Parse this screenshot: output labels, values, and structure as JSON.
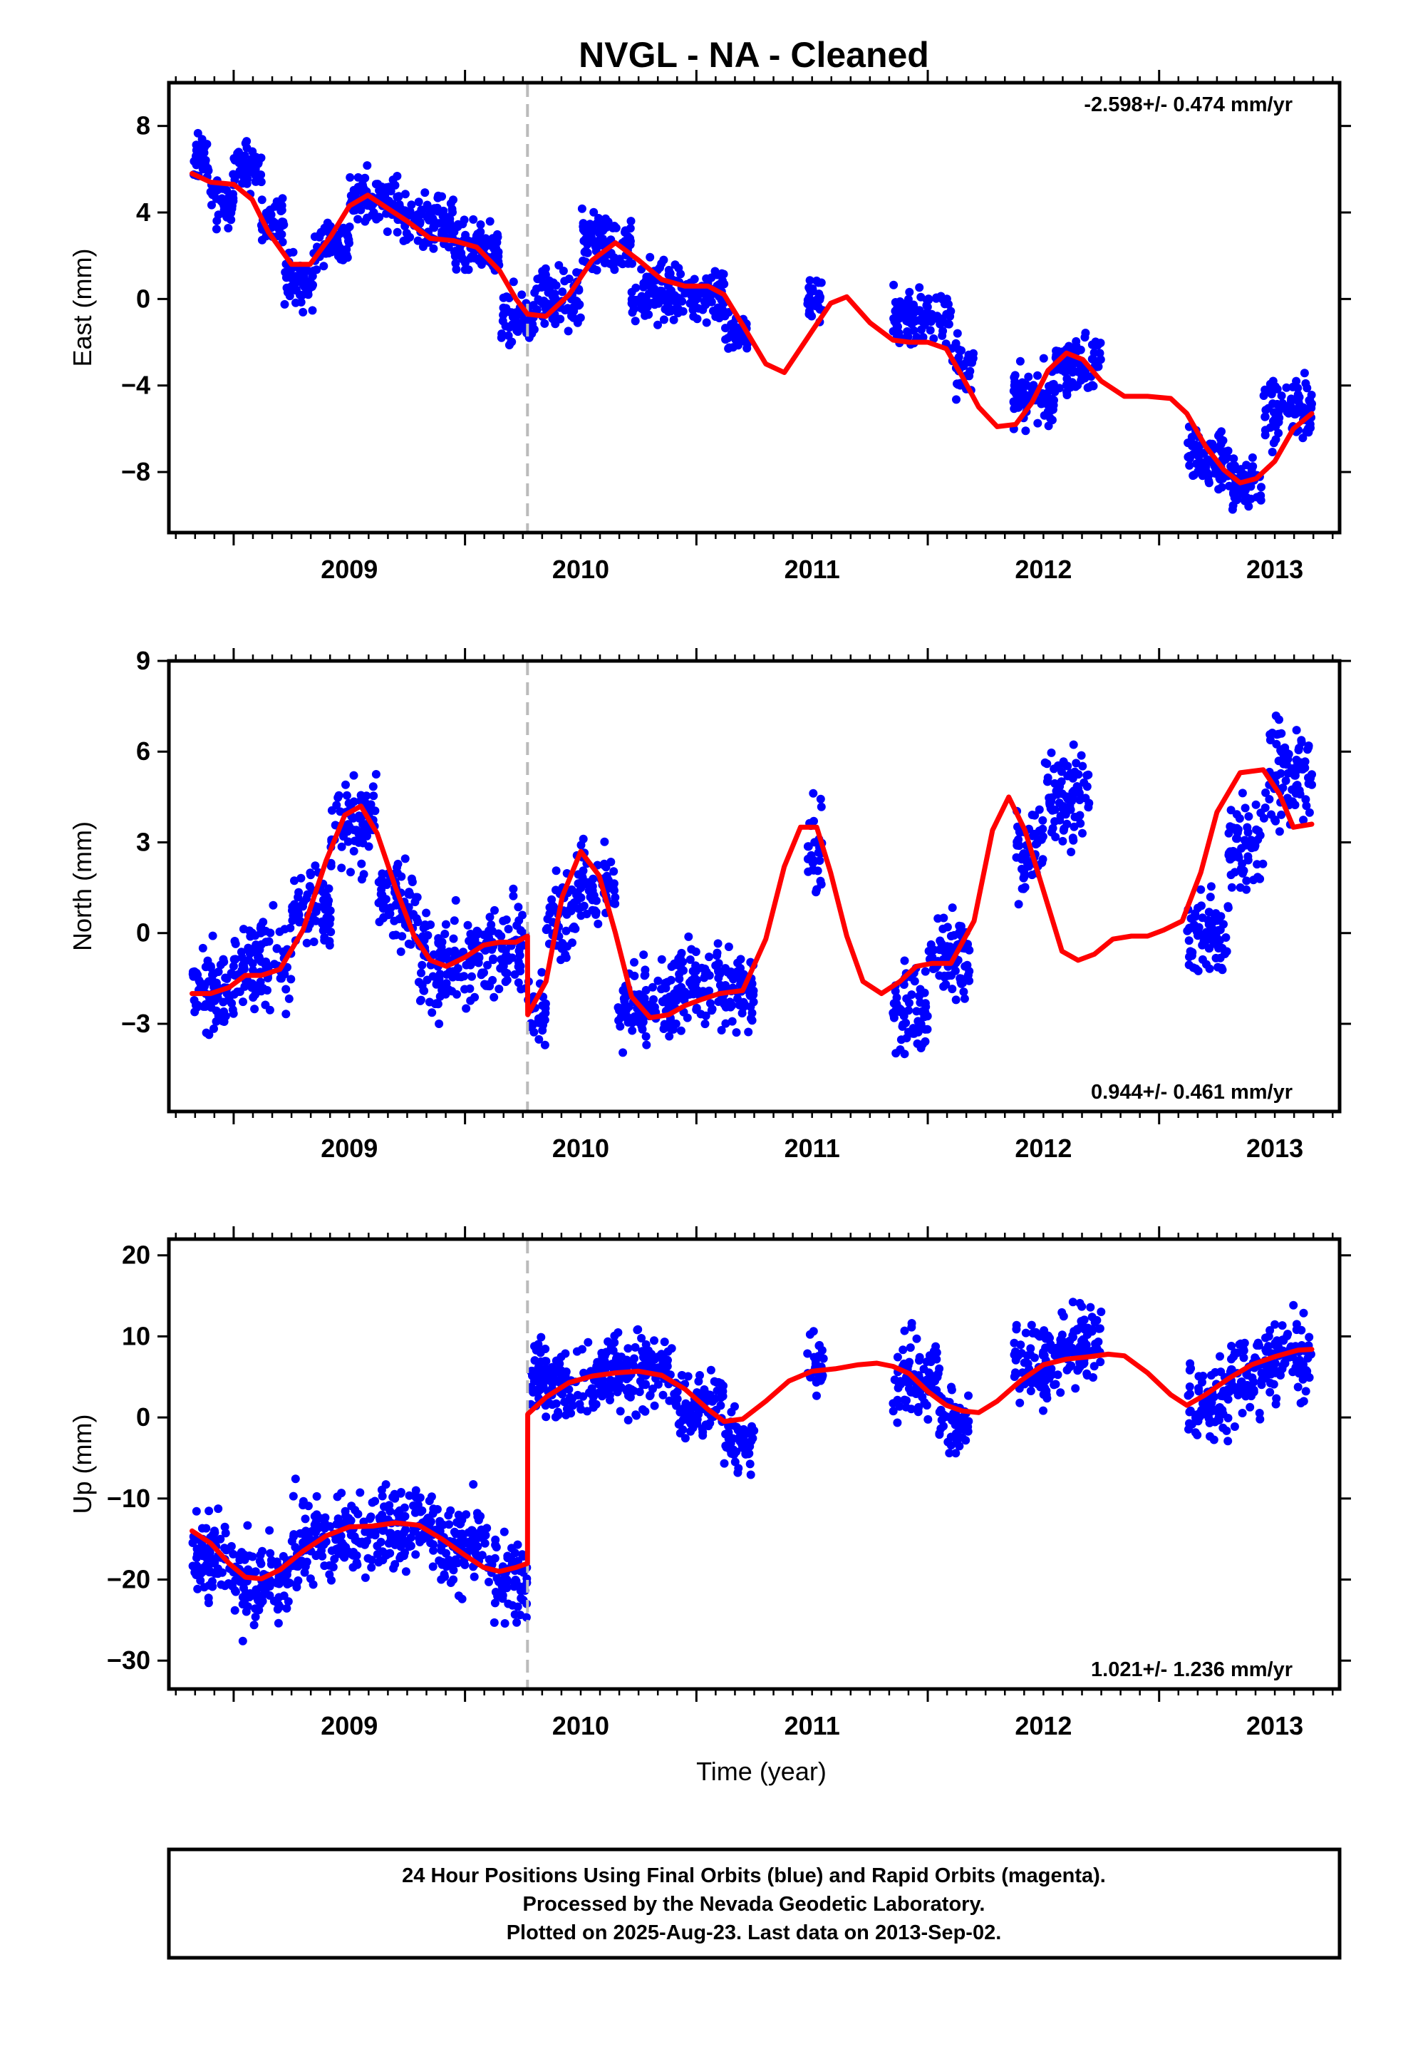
{
  "title": "NVGL  - NA - Cleaned",
  "chart_data": [
    {
      "type": "scatter",
      "panel": "East",
      "ylabel": "East (mm)",
      "xlabel": "",
      "xlim": [
        2008.72,
        2013.78
      ],
      "ylim": [
        -10.8,
        10
      ],
      "yticks": [
        -8,
        -4,
        0,
        4,
        8
      ],
      "xticks": [
        2009,
        2010,
        2011,
        2012,
        2013
      ],
      "rate_label": "-2.598+/- 0.474 mm/yr",
      "rate_position": "top-right",
      "equipment_change": 2010.27,
      "colors": {
        "points": "#0000ff",
        "model": "#ff0000",
        "marker": "#bbbbbb"
      },
      "model": {
        "x": [
          2008.82,
          2008.9,
          2009.0,
          2009.08,
          2009.15,
          2009.25,
          2009.33,
          2009.42,
          2009.5,
          2009.58,
          2009.65,
          2009.75,
          2009.85,
          2009.95,
          2010.05,
          2010.15,
          2010.22,
          2010.27,
          2010.35,
          2010.45,
          2010.55,
          2010.65,
          2010.75,
          2010.85,
          2010.95,
          2011.05,
          2011.12,
          2011.2,
          2011.3,
          2011.38,
          2011.48,
          2011.58,
          2011.65,
          2011.75,
          2011.85,
          2011.92,
          2012.0,
          2012.08,
          2012.15,
          2012.22,
          2012.3,
          2012.38,
          2012.45,
          2012.52,
          2012.6,
          2012.67,
          2012.75,
          2012.85,
          2012.95,
          2013.05,
          2013.12,
          2013.2,
          2013.28,
          2013.35,
          2013.42,
          2013.5,
          2013.58,
          2013.66
        ],
        "y": [
          5.8,
          5.4,
          5.3,
          4.6,
          3.1,
          1.6,
          1.6,
          2.9,
          4.3,
          4.8,
          4.3,
          3.6,
          2.8,
          2.7,
          2.4,
          1.3,
          0.0,
          -0.7,
          -0.8,
          0.2,
          1.8,
          2.6,
          1.8,
          0.9,
          0.6,
          0.6,
          0.2,
          -1.2,
          -3.0,
          -3.4,
          -1.8,
          -0.2,
          0.1,
          -1.1,
          -1.9,
          -2.0,
          -2.0,
          -2.3,
          -3.6,
          -5.0,
          -5.9,
          -5.8,
          -4.8,
          -3.3,
          -2.5,
          -2.8,
          -3.8,
          -4.5,
          -4.5,
          -4.6,
          -5.3,
          -6.8,
          -7.9,
          -8.5,
          -8.3,
          -7.5,
          -6.0,
          -5.3
        ]
      },
      "observations": [
        {
          "x": [
            2008.82,
            2008.9
          ],
          "center": 6.5,
          "spread": 2.4
        },
        {
          "x": [
            2008.9,
            2009.0
          ],
          "center": 4.5,
          "spread": 2.6
        },
        {
          "x": [
            2009.0,
            2009.12
          ],
          "center": 6.0,
          "spread": 2.6
        },
        {
          "x": [
            2009.12,
            2009.22
          ],
          "center": 3.8,
          "spread": 2.4
        },
        {
          "x": [
            2009.22,
            2009.35
          ],
          "center": 0.8,
          "spread": 3.0
        },
        {
          "x": [
            2009.35,
            2009.5
          ],
          "center": 2.6,
          "spread": 2.6
        },
        {
          "x": [
            2009.5,
            2009.72
          ],
          "center": 4.6,
          "spread": 2.8
        },
        {
          "x": [
            2009.72,
            2009.95
          ],
          "center": 3.6,
          "spread": 2.8
        },
        {
          "x": [
            2009.95,
            2010.15
          ],
          "center": 2.2,
          "spread": 2.8
        },
        {
          "x": [
            2010.15,
            2010.3
          ],
          "center": -0.8,
          "spread": 3.0
        },
        {
          "x": [
            2010.3,
            2010.5
          ],
          "center": 0.0,
          "spread": 3.0
        },
        {
          "x": [
            2010.5,
            2010.72
          ],
          "center": 2.6,
          "spread": 3.0
        },
        {
          "x": [
            2010.72,
            2010.95
          ],
          "center": 0.4,
          "spread": 3.2
        },
        {
          "x": [
            2010.95,
            2011.12
          ],
          "center": 0.2,
          "spread": 3.0
        },
        {
          "x": [
            2011.12,
            2011.22
          ],
          "center": -1.6,
          "spread": 2.4
        },
        {
          "x": [
            2011.48,
            2011.55
          ],
          "center": 0.0,
          "spread": 2.4
        },
        {
          "x": [
            2011.85,
            2012.1
          ],
          "center": -0.8,
          "spread": 3.0
        },
        {
          "x": [
            2012.1,
            2012.2
          ],
          "center": -3.2,
          "spread": 2.6
        },
        {
          "x": [
            2012.37,
            2012.55
          ],
          "center": -4.5,
          "spread": 3.0
        },
        {
          "x": [
            2012.55,
            2012.75
          ],
          "center": -3.0,
          "spread": 2.8
        },
        {
          "x": [
            2013.12,
            2013.3
          ],
          "center": -7.2,
          "spread": 3.2
        },
        {
          "x": [
            2013.3,
            2013.45
          ],
          "center": -8.6,
          "spread": 3.0
        },
        {
          "x": [
            2013.45,
            2013.66
          ],
          "center": -5.2,
          "spread": 3.4
        }
      ]
    },
    {
      "type": "scatter",
      "panel": "North",
      "ylabel": "North (mm)",
      "xlabel": "",
      "xlim": [
        2008.72,
        2013.78
      ],
      "ylim": [
        -5.9,
        9
      ],
      "yticks": [
        -3,
        0,
        3,
        6,
        9
      ],
      "xticks": [
        2009,
        2010,
        2011,
        2012,
        2013
      ],
      "rate_label": "0.944+/- 0.461 mm/yr",
      "rate_position": "bottom-right",
      "equipment_change": 2010.27,
      "colors": {
        "points": "#0000ff",
        "model": "#ff0000",
        "marker": "#bbbbbb"
      },
      "model": {
        "x": [
          2008.82,
          2008.9,
          2008.98,
          2009.05,
          2009.12,
          2009.2,
          2009.3,
          2009.4,
          2009.48,
          2009.55,
          2009.62,
          2009.7,
          2009.78,
          2009.85,
          2009.92,
          2010.0,
          2010.08,
          2010.15,
          2010.22,
          2010.27,
          2010.271,
          2010.35,
          2010.42,
          2010.5,
          2010.58,
          2010.65,
          2010.72,
          2010.8,
          2010.88,
          2010.95,
          2011.02,
          2011.1,
          2011.2,
          2011.3,
          2011.38,
          2011.45,
          2011.52,
          2011.58,
          2011.65,
          2011.72,
          2011.8,
          2011.88,
          2011.95,
          2012.02,
          2012.1,
          2012.2,
          2012.28,
          2012.35,
          2012.42,
          2012.5,
          2012.58,
          2012.65,
          2012.72,
          2012.8,
          2012.88,
          2012.95,
          2013.02,
          2013.1,
          2013.18,
          2013.25,
          2013.35,
          2013.45,
          2013.52,
          2013.58,
          2013.66
        ],
        "y": [
          -2.0,
          -2.0,
          -1.8,
          -1.4,
          -1.4,
          -1.2,
          0.1,
          2.4,
          3.9,
          4.2,
          3.3,
          1.5,
          -0.1,
          -0.9,
          -1.1,
          -0.8,
          -0.4,
          -0.3,
          -0.3,
          -0.1,
          -2.7,
          -1.6,
          1.2,
          2.7,
          1.9,
          0.0,
          -2.1,
          -2.8,
          -2.7,
          -2.4,
          -2.2,
          -2.0,
          -1.9,
          -0.2,
          2.2,
          3.5,
          3.5,
          2.0,
          -0.1,
          -1.6,
          -2.0,
          -1.6,
          -1.1,
          -1.0,
          -1.0,
          0.4,
          3.4,
          4.5,
          3.4,
          1.4,
          -0.6,
          -0.9,
          -0.7,
          -0.2,
          -0.1,
          -0.1,
          0.1,
          0.4,
          2.0,
          4.0,
          5.3,
          5.4,
          4.6,
          3.5,
          3.6
        ]
      },
      "observations": [
        {
          "x": [
            2008.82,
            2009.0
          ],
          "center": -2.0,
          "spread": 3.2
        },
        {
          "x": [
            2009.0,
            2009.25
          ],
          "center": -1.0,
          "spread": 3.2
        },
        {
          "x": [
            2009.25,
            2009.42
          ],
          "center": 0.8,
          "spread": 3.4
        },
        {
          "x": [
            2009.42,
            2009.62
          ],
          "center": 3.6,
          "spread": 3.4
        },
        {
          "x": [
            2009.62,
            2009.8
          ],
          "center": 1.0,
          "spread": 3.4
        },
        {
          "x": [
            2009.8,
            2010.05
          ],
          "center": -1.0,
          "spread": 3.6
        },
        {
          "x": [
            2010.05,
            2010.27
          ],
          "center": -0.6,
          "spread": 3.4
        },
        {
          "x": [
            2010.27,
            2010.35
          ],
          "center": -2.6,
          "spread": 3.0
        },
        {
          "x": [
            2010.35,
            2010.48
          ],
          "center": 0.6,
          "spread": 3.2
        },
        {
          "x": [
            2010.48,
            2010.66
          ],
          "center": 1.6,
          "spread": 3.2
        },
        {
          "x": [
            2010.66,
            2010.9
          ],
          "center": -2.4,
          "spread": 3.2
        },
        {
          "x": [
            2010.9,
            2011.25
          ],
          "center": -1.8,
          "spread": 3.2
        },
        {
          "x": [
            2011.48,
            2011.55
          ],
          "center": 2.6,
          "spread": 3.2
        },
        {
          "x": [
            2011.85,
            2012.0
          ],
          "center": -2.6,
          "spread": 3.6
        },
        {
          "x": [
            2012.0,
            2012.18
          ],
          "center": -0.6,
          "spread": 3.2
        },
        {
          "x": [
            2012.37,
            2012.5
          ],
          "center": 2.6,
          "spread": 3.4
        },
        {
          "x": [
            2012.5,
            2012.7
          ],
          "center": 4.6,
          "spread": 3.4
        },
        {
          "x": [
            2013.12,
            2013.3
          ],
          "center": 0.0,
          "spread": 3.4
        },
        {
          "x": [
            2013.3,
            2013.45
          ],
          "center": 2.8,
          "spread": 3.6
        },
        {
          "x": [
            2013.45,
            2013.66
          ],
          "center": 5.2,
          "spread": 3.8
        }
      ]
    },
    {
      "type": "scatter",
      "panel": "Up",
      "ylabel": "Up (mm)",
      "xlabel": "Time (year)",
      "xlim": [
        2008.72,
        2013.78
      ],
      "ylim": [
        -33.5,
        22
      ],
      "yticks": [
        -30,
        -20,
        -10,
        0,
        10,
        20
      ],
      "xticks": [
        2009,
        2010,
        2011,
        2012,
        2013
      ],
      "rate_label": "1.021+/- 1.236 mm/yr",
      "rate_position": "bottom-right",
      "equipment_change": 2010.27,
      "colors": {
        "points": "#0000ff",
        "model": "#ff0000",
        "marker": "#bbbbbb"
      },
      "model": {
        "x": [
          2008.82,
          2008.9,
          2008.98,
          2009.05,
          2009.12,
          2009.2,
          2009.3,
          2009.4,
          2009.5,
          2009.6,
          2009.7,
          2009.8,
          2009.9,
          2010.0,
          2010.08,
          2010.15,
          2010.22,
          2010.27,
          2010.271,
          2010.35,
          2010.45,
          2010.55,
          2010.65,
          2010.75,
          2010.85,
          2010.95,
          2011.05,
          2011.12,
          2011.2,
          2011.3,
          2011.4,
          2011.5,
          2011.6,
          2011.7,
          2011.78,
          2011.85,
          2011.92,
          2012.0,
          2012.08,
          2012.15,
          2012.22,
          2012.3,
          2012.4,
          2012.5,
          2012.6,
          2012.7,
          2012.78,
          2012.85,
          2012.95,
          2013.05,
          2013.12,
          2013.2,
          2013.3,
          2013.4,
          2013.5,
          2013.6,
          2013.66
        ],
        "y": [
          -14,
          -15.5,
          -18,
          -19.7,
          -19.9,
          -18.8,
          -16.5,
          -14.6,
          -13.5,
          -13.4,
          -13,
          -13.3,
          -15,
          -17,
          -18.5,
          -19,
          -18.5,
          -18,
          0.4,
          2.5,
          4.3,
          5.1,
          5.5,
          5.7,
          5.2,
          3.5,
          1.0,
          -0.5,
          -0.2,
          2.0,
          4.5,
          5.7,
          6.0,
          6.5,
          6.7,
          6.3,
          5.4,
          3.2,
          1.5,
          0.8,
          0.6,
          2.0,
          4.5,
          6.5,
          7.2,
          7.5,
          7.8,
          7.6,
          5.5,
          2.8,
          1.5,
          2.8,
          4.8,
          6.5,
          7.5,
          8.3,
          8.4
        ]
      },
      "observations": [
        {
          "x": [
            2008.82,
            2009.0
          ],
          "center": -17,
          "spread": 13
        },
        {
          "x": [
            2009.0,
            2009.25
          ],
          "center": -20,
          "spread": 13
        },
        {
          "x": [
            2009.25,
            2009.55
          ],
          "center": -15,
          "spread": 12
        },
        {
          "x": [
            2009.55,
            2009.85
          ],
          "center": -13.5,
          "spread": 12
        },
        {
          "x": [
            2009.85,
            2010.1
          ],
          "center": -16,
          "spread": 12
        },
        {
          "x": [
            2010.1,
            2010.27
          ],
          "center": -20,
          "spread": 13
        },
        {
          "x": [
            2010.28,
            2010.6
          ],
          "center": 4.5,
          "spread": 11
        },
        {
          "x": [
            2010.6,
            2010.9
          ],
          "center": 5.5,
          "spread": 11
        },
        {
          "x": [
            2010.9,
            2011.12
          ],
          "center": 1.5,
          "spread": 11
        },
        {
          "x": [
            2011.12,
            2011.25
          ],
          "center": -2.5,
          "spread": 9
        },
        {
          "x": [
            2011.48,
            2011.55
          ],
          "center": 6,
          "spread": 9
        },
        {
          "x": [
            2011.85,
            2012.05
          ],
          "center": 5,
          "spread": 11
        },
        {
          "x": [
            2012.05,
            2012.18
          ],
          "center": -0.5,
          "spread": 10
        },
        {
          "x": [
            2012.37,
            2012.55
          ],
          "center": 7,
          "spread": 12
        },
        {
          "x": [
            2012.55,
            2012.75
          ],
          "center": 9,
          "spread": 12
        },
        {
          "x": [
            2013.12,
            2013.3
          ],
          "center": 2,
          "spread": 12
        },
        {
          "x": [
            2013.3,
            2013.5
          ],
          "center": 5.5,
          "spread": 12
        },
        {
          "x": [
            2013.5,
            2013.66
          ],
          "center": 7,
          "spread": 12
        }
      ]
    }
  ],
  "footer": {
    "line1": "24 Hour Positions Using Final Orbits (blue) and Rapid Orbits (magenta).",
    "line2": "Processed by the Nevada Geodetic Laboratory.",
    "line3": "Plotted on 2025-Aug-23. Last data on 2013-Sep-02."
  }
}
